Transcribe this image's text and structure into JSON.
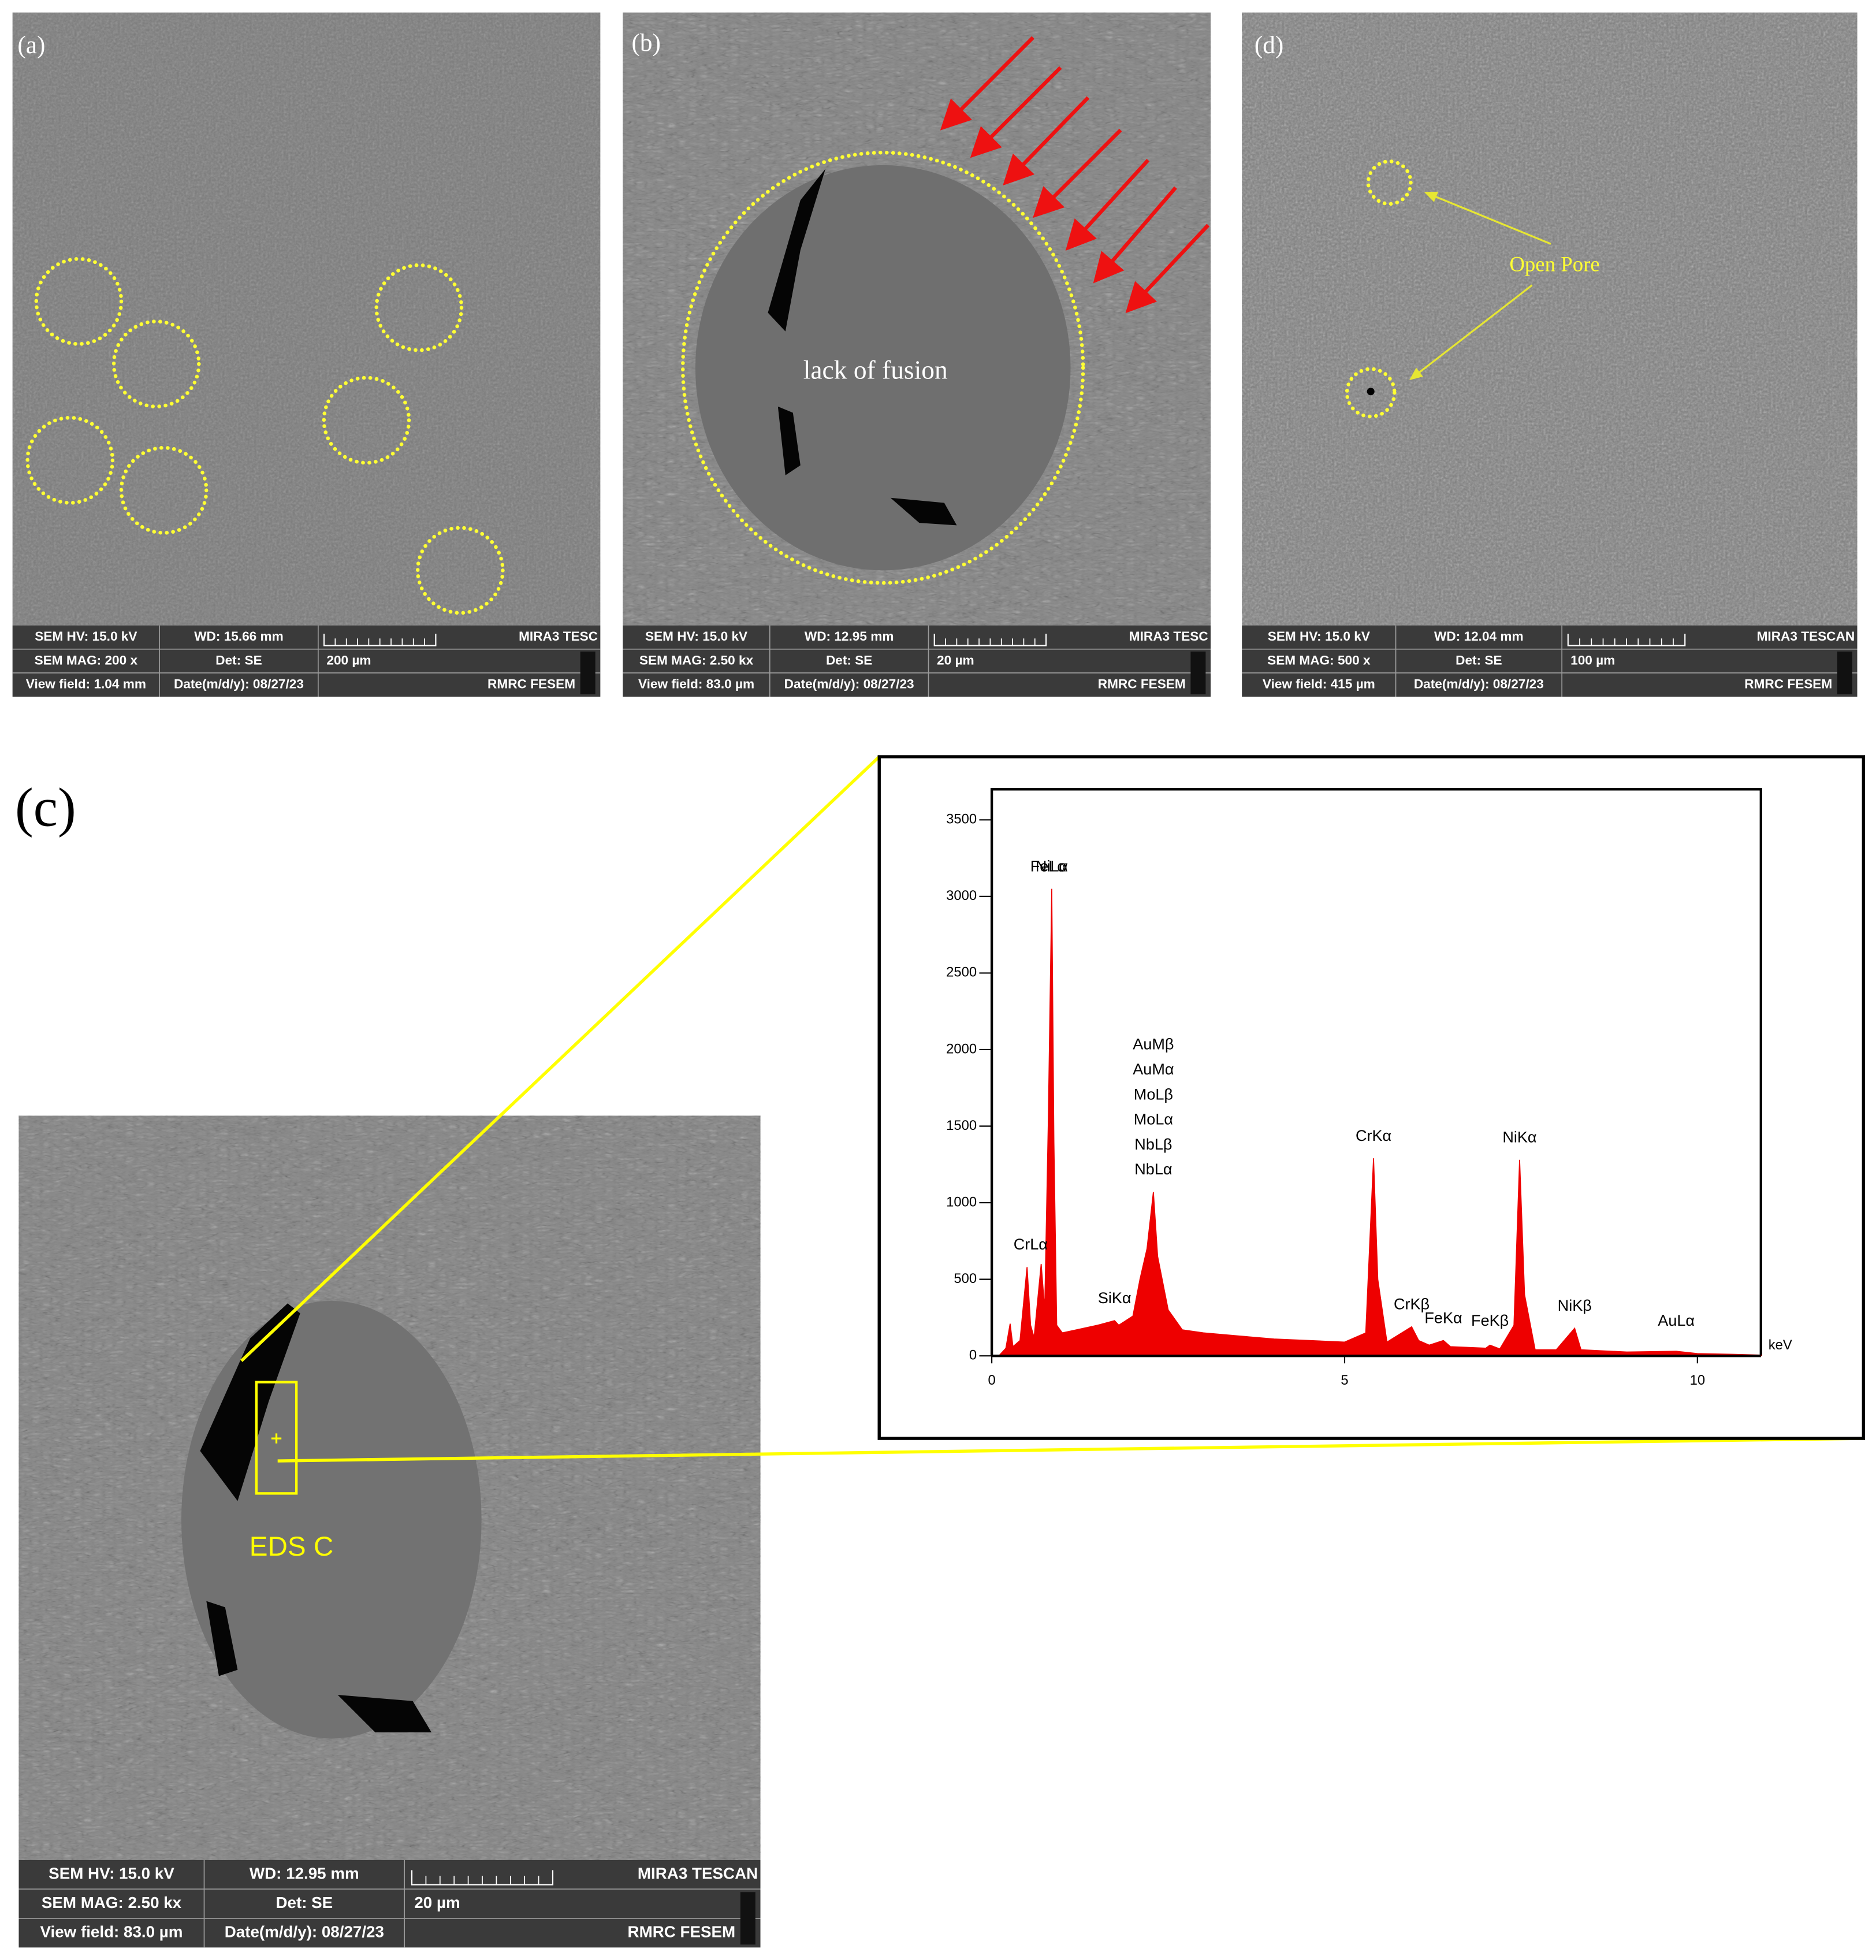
{
  "panels": [
    {
      "label": "(a)",
      "info": {
        "hv": "SEM HV: 15.0 kV",
        "wd": "WD: 15.66 mm",
        "brand": "MIRA3 TESC",
        "mag": "SEM MAG: 200 x",
        "det": "Det: SE",
        "scale": "200 µm",
        "view": "View field: 1.04 mm",
        "date": "Date(m/d/y): 08/27/23",
        "lab": "RMRC  FESEM"
      }
    },
    {
      "label": "(b)",
      "annotation": "lack of fusion",
      "info": {
        "hv": "SEM HV: 15.0 kV",
        "wd": "WD: 12.95 mm",
        "brand": "MIRA3 TESC",
        "mag": "SEM MAG: 2.50 kx",
        "det": "Det: SE",
        "scale": "20 µm",
        "view": "View field: 83.0 µm",
        "date": "Date(m/d/y): 08/27/23",
        "lab": "RMRC  FESEM"
      }
    },
    {
      "label": "(d)",
      "annotation": "Open Pore",
      "info": {
        "hv": "SEM HV: 15.0 kV",
        "wd": "WD: 12.04 mm",
        "brand": "MIRA3 TESCAN",
        "mag": "SEM MAG: 500 x",
        "det": "Det: SE",
        "scale": "100 µm",
        "view": "View field: 415 µm",
        "date": "Date(m/d/y): 08/27/23",
        "lab": "RMRC  FESEM"
      }
    },
    {
      "label": "(c)",
      "annotation": "EDS C",
      "info": {
        "hv": "SEM HV: 15.0 kV",
        "wd": "WD: 12.95 mm",
        "brand": "MIRA3 TESCAN",
        "mag": "SEM MAG: 2.50 kx",
        "det": "Det: SE",
        "scale": "20 µm",
        "view": "View field: 83.0 µm",
        "date": "Date(m/d/y): 08/27/23",
        "lab": "RMRC  FESEM"
      }
    }
  ],
  "chart_data": {
    "type": "area",
    "xlabel": "keV",
    "color": "#ee0000",
    "x": [
      0.1,
      0.2,
      0.26,
      0.3,
      0.4,
      0.5,
      0.55,
      0.6,
      0.7,
      0.75,
      0.8,
      0.85,
      0.88,
      0.92,
      1.0,
      1.2,
      1.5,
      1.74,
      1.8,
      2.0,
      2.1,
      2.2,
      2.29,
      2.35,
      2.5,
      2.7,
      3.0,
      3.5,
      4.0,
      4.5,
      5.0,
      5.3,
      5.41,
      5.47,
      5.6,
      5.95,
      6.05,
      6.2,
      6.4,
      6.5,
      7.0,
      7.06,
      7.2,
      7.4,
      7.48,
      7.55,
      7.7,
      8.0,
      8.26,
      8.35,
      9.0,
      9.7,
      10.0,
      10.5,
      10.9
    ],
    "values": [
      0,
      50,
      210,
      60,
      100,
      580,
      200,
      120,
      600,
      300,
      1500,
      3050,
      1400,
      200,
      150,
      170,
      200,
      230,
      200,
      260,
      500,
      700,
      1070,
      650,
      300,
      170,
      150,
      130,
      110,
      100,
      90,
      150,
      1290,
      500,
      90,
      190,
      100,
      70,
      100,
      60,
      50,
      70,
      45,
      200,
      1280,
      400,
      40,
      40,
      180,
      40,
      25,
      30,
      15,
      10,
      5
    ],
    "xlim": [
      0,
      10.9
    ],
    "ylim": [
      0,
      3700
    ],
    "xticks": [
      0,
      5,
      10
    ],
    "yticks": [
      0,
      500,
      1000,
      1500,
      2000,
      2500,
      3000,
      3500
    ],
    "annotations": [
      {
        "text": "NiLα",
        "x": 0.85
      },
      {
        "text": "FeLα",
        "x": 0.8
      },
      {
        "text": "CrLα",
        "x": 0.55
      },
      {
        "text": "SiKα",
        "x": 1.74
      },
      {
        "text": "AuMβ",
        "x": 2.29
      },
      {
        "text": "AuMα",
        "x": 2.29
      },
      {
        "text": "MoLβ",
        "x": 2.29
      },
      {
        "text": "MoLα",
        "x": 2.29
      },
      {
        "text": "NbLβ",
        "x": 2.29
      },
      {
        "text": "NbLα",
        "x": 2.29
      },
      {
        "text": "CrKα",
        "x": 5.41
      },
      {
        "text": "FeKα",
        "x": 6.4
      },
      {
        "text": "CrKβ",
        "x": 5.95
      },
      {
        "text": "FeKβ",
        "x": 7.06
      },
      {
        "text": "NiKα",
        "x": 7.48
      },
      {
        "text": "NiKβ",
        "x": 8.26
      },
      {
        "text": "AuLα",
        "x": 9.7
      }
    ]
  }
}
